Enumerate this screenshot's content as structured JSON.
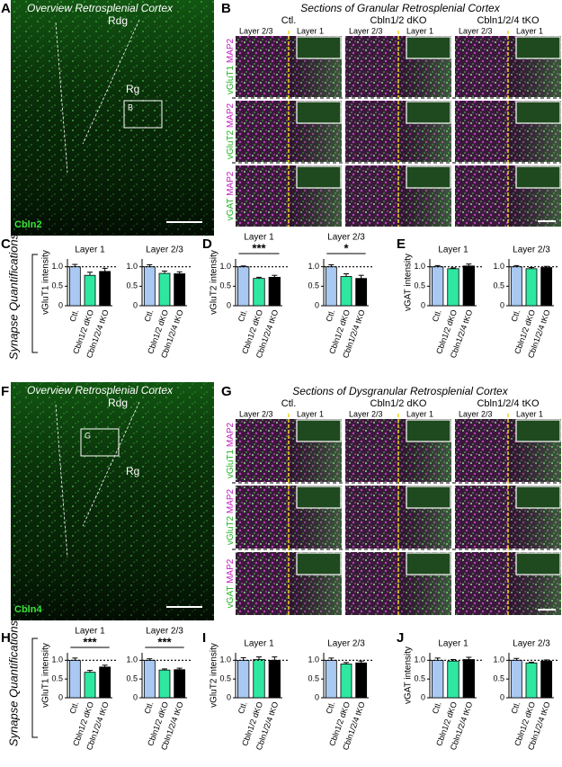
{
  "synapse_label": "Synapse Quantifications",
  "panels": {
    "A": {
      "letter": "A",
      "title": "Overview Retrosplenial Cortex",
      "regions": [
        "Rdg",
        "Rg"
      ],
      "box_label": "B",
      "stain": "Cbln2"
    },
    "B": {
      "letter": "B",
      "title": "Sections of Granular Retrosplenial Cortex",
      "genotypes": [
        "Ctl.",
        "Cbln1/2 dKO",
        "Cbln1/2/4 tKO"
      ],
      "layers": [
        "Layer 2/3",
        "Layer 1"
      ],
      "rows": [
        {
          "green": "vGluT1",
          "magenta": "MAP2"
        },
        {
          "green": "vGluT2",
          "magenta": "MAP2"
        },
        {
          "green": "vGAT",
          "magenta": "MAP2"
        }
      ]
    },
    "F": {
      "letter": "F",
      "title": "Overview Retrosplenial Cortex",
      "regions": [
        "Rdg",
        "Rg"
      ],
      "box_label": "G",
      "stain": "Cbln4"
    },
    "G": {
      "letter": "G",
      "title": "Sections of Dysgranular Retrosplenial Cortex",
      "genotypes": [
        "Ctl.",
        "Cbln1/2 dKO",
        "Cbln1/2/4 tKO"
      ],
      "layers": [
        "Layer 2/3",
        "Layer 1"
      ],
      "rows": [
        {
          "green": "vGluT1",
          "magenta": "MAP2"
        },
        {
          "green": "vGluT2",
          "magenta": "MAP2"
        },
        {
          "green": "vGAT",
          "magenta": "MAP2"
        }
      ]
    }
  },
  "chart_data": [
    {
      "type": "bar",
      "panel": "C",
      "title": "Layer 1",
      "ylabel": "vGluT1 intensity",
      "categories": [
        "Ctl.",
        "Cbln1/2 dKO",
        "Cbln1/2/4 tKO"
      ],
      "values": [
        1.0,
        0.78,
        0.88
      ],
      "errors": [
        0.06,
        0.08,
        0.08
      ],
      "colors": [
        "#a9c9f2",
        "#2ee8a2",
        "#000000"
      ],
      "ylim": [
        0,
        1.2
      ],
      "yticks": [
        0,
        0.5,
        {
          "value": 1,
          "label": "1.0"
        }
      ],
      "ref_line": 1
    },
    {
      "type": "bar",
      "title": "Layer 2/3",
      "categories": [
        "Ctl.",
        "Cbln1/2 dKO",
        "Cbln1/2/4 tKO"
      ],
      "values": [
        1.0,
        0.83,
        0.82
      ],
      "errors": [
        0.05,
        0.06,
        0.05
      ],
      "colors": [
        "#a9c9f2",
        "#2ee8a2",
        "#000000"
      ],
      "ylim": [
        0,
        1.2
      ],
      "yticks": [
        0,
        0.5,
        {
          "value": 1,
          "label": "1.0"
        }
      ],
      "ref_line": 1
    },
    {
      "type": "bar",
      "panel": "D",
      "title": "Layer 1",
      "ylabel": "vGluT2 intensity",
      "significance": "***",
      "categories": [
        "Ctl.",
        "Cbln1/2 dKO",
        "Cbln1/2/4 tKO"
      ],
      "values": [
        1.0,
        0.7,
        0.73
      ],
      "errors": [
        0.02,
        0.03,
        0.05
      ],
      "colors": [
        "#a9c9f2",
        "#2ee8a2",
        "#000000"
      ],
      "ylim": [
        0,
        1.2
      ],
      "yticks": [
        0,
        0.5,
        {
          "value": 1,
          "label": "1.0"
        }
      ],
      "ref_line": 1
    },
    {
      "type": "bar",
      "title": "Layer 2/3",
      "significance": "*",
      "categories": [
        "Ctl.",
        "Cbln1/2 dKO",
        "Cbln1/2/4 tKO"
      ],
      "values": [
        1.0,
        0.75,
        0.7
      ],
      "errors": [
        0.05,
        0.07,
        0.08
      ],
      "colors": [
        "#a9c9f2",
        "#2ee8a2",
        "#000000"
      ],
      "ylim": [
        0,
        1.2
      ],
      "yticks": [
        0,
        0.5,
        {
          "value": 1,
          "label": "1.0"
        }
      ],
      "ref_line": 1
    },
    {
      "type": "bar",
      "panel": "E",
      "title": "Layer 1",
      "ylabel": "vGAT intensity",
      "categories": [
        "Ctl.",
        "Cbln1/2 dKO",
        "Cbln1/2/4 tKO"
      ],
      "values": [
        1.0,
        0.95,
        1.02
      ],
      "errors": [
        0.03,
        0.02,
        0.05
      ],
      "colors": [
        "#a9c9f2",
        "#2ee8a2",
        "#000000"
      ],
      "ylim": [
        0,
        1.2
      ],
      "yticks": [
        0,
        0.5,
        {
          "value": 1,
          "label": "1.0"
        }
      ],
      "ref_line": 1
    },
    {
      "type": "bar",
      "title": "Layer 2/3",
      "categories": [
        "Ctl.",
        "Cbln1/2 dKO",
        "Cbln1/2/4 tKO"
      ],
      "values": [
        1.0,
        0.95,
        0.98
      ],
      "errors": [
        0.03,
        0.03,
        0.03
      ],
      "colors": [
        "#a9c9f2",
        "#2ee8a2",
        "#000000"
      ],
      "ylim": [
        0,
        1.2
      ],
      "yticks": [
        0,
        0.5,
        {
          "value": 1,
          "label": "1.0"
        }
      ],
      "ref_line": 1
    },
    {
      "type": "bar",
      "panel": "H",
      "title": "Layer 1",
      "ylabel": "vGluT1 intensity",
      "significance": "***",
      "categories": [
        "Ctl.",
        "Cbln1/2 dKO",
        "Cbln1/2/4 tKO"
      ],
      "values": [
        1.0,
        0.68,
        0.82
      ],
      "errors": [
        0.06,
        0.05,
        0.05
      ],
      "colors": [
        "#a9c9f2",
        "#2ee8a2",
        "#000000"
      ],
      "ylim": [
        0,
        1.2
      ],
      "yticks": [
        0,
        0.5,
        {
          "value": 1,
          "label": "1.0"
        }
      ],
      "ref_line": 1
    },
    {
      "type": "bar",
      "title": "Layer 2/3",
      "significance": "***",
      "categories": [
        "Ctl.",
        "Cbln1/2 dKO",
        "Cbln1/2/4 tKO"
      ],
      "values": [
        1.0,
        0.74,
        0.75
      ],
      "errors": [
        0.04,
        0.03,
        0.04
      ],
      "colors": [
        "#a9c9f2",
        "#2ee8a2",
        "#000000"
      ],
      "ylim": [
        0,
        1.2
      ],
      "yticks": [
        0,
        0.5,
        {
          "value": 1,
          "label": "1.0"
        }
      ],
      "ref_line": 1
    },
    {
      "type": "bar",
      "panel": "I",
      "title": "Layer 1",
      "ylabel": "vGluT2 intensity",
      "categories": [
        "Ctl.",
        "Cbln1/2 dKO",
        "Cbln1/2/4 tKO"
      ],
      "values": [
        1.0,
        1.02,
        1.0
      ],
      "errors": [
        0.07,
        0.07,
        0.09
      ],
      "colors": [
        "#a9c9f2",
        "#2ee8a2",
        "#000000"
      ],
      "ylim": [
        0,
        1.2
      ],
      "yticks": [
        0,
        0.5,
        {
          "value": 1,
          "label": "1.0"
        }
      ],
      "ref_line": 1
    },
    {
      "type": "bar",
      "title": "Layer 2/3",
      "categories": [
        "Ctl.",
        "Cbln1/2 dKO",
        "Cbln1/2/4 tKO"
      ],
      "values": [
        1.0,
        0.9,
        0.93
      ],
      "errors": [
        0.06,
        0.04,
        0.05
      ],
      "colors": [
        "#a9c9f2",
        "#2ee8a2",
        "#000000"
      ],
      "ylim": [
        0,
        1.2
      ],
      "yticks": [
        0,
        0.5,
        {
          "value": 1,
          "label": "1.0"
        }
      ],
      "ref_line": 1
    },
    {
      "type": "bar",
      "panel": "J",
      "title": "Layer 1",
      "ylabel": "vGAT intensity",
      "categories": [
        "Ctl.",
        "Cbln1/2 dKO",
        "Cbln1/2/4 tKO"
      ],
      "values": [
        1.0,
        0.98,
        1.02
      ],
      "errors": [
        0.06,
        0.04,
        0.06
      ],
      "colors": [
        "#a9c9f2",
        "#2ee8a2",
        "#000000"
      ],
      "ylim": [
        0,
        1.2
      ],
      "yticks": [
        0,
        0.5,
        {
          "value": 1,
          "label": "1.0"
        }
      ],
      "ref_line": 1
    },
    {
      "type": "bar",
      "title": "Layer 2/3",
      "categories": [
        "Ctl.",
        "Cbln1/2 dKO",
        "Cbln1/2/4 tKO"
      ],
      "values": [
        1.0,
        0.93,
        0.98
      ],
      "errors": [
        0.05,
        0.02,
        0.03
      ],
      "colors": [
        "#a9c9f2",
        "#2ee8a2",
        "#000000"
      ],
      "ylim": [
        0,
        1.2
      ],
      "yticks": [
        0,
        0.5,
        {
          "value": 1,
          "label": "1.0"
        }
      ],
      "ref_line": 1
    }
  ]
}
